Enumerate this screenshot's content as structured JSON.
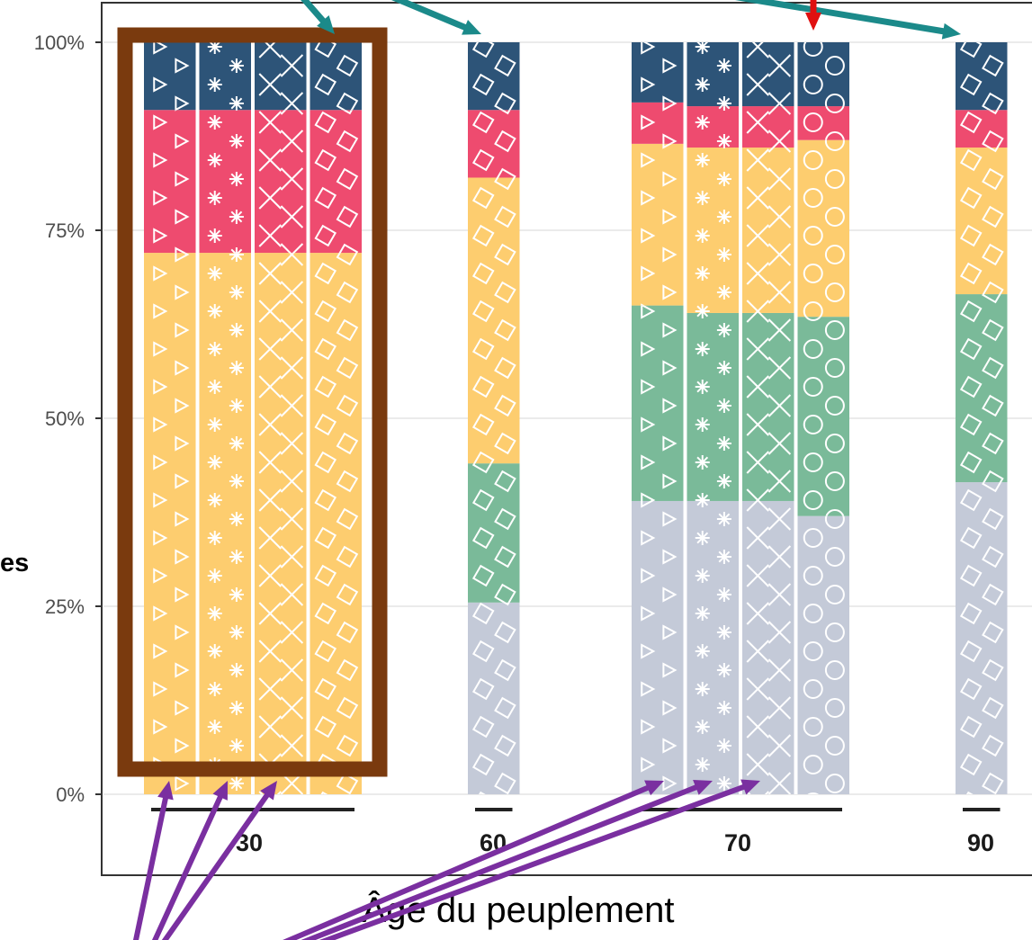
{
  "chart_data": {
    "type": "bar",
    "stacked": true,
    "normalized": true,
    "title": "",
    "xlabel": "Âge du peuplement",
    "ylabel": "",
    "y_ticks": [
      "0%",
      "25%",
      "50%",
      "75%",
      "100%"
    ],
    "ylim": [
      0,
      1
    ],
    "grid": "horizontal",
    "categories": [
      "30",
      "60",
      "70",
      "90"
    ],
    "bars_per_category": [
      4,
      1,
      4,
      1
    ],
    "colors": [
      "#c4cad8",
      "#7aba99",
      "#fdcd6f",
      "#ee4b6f",
      "#2d5478"
    ],
    "bar_patterns": [
      [
        "triangle",
        "asterisk",
        "cross",
        "square"
      ],
      [
        "square"
      ],
      [
        "triangle",
        "asterisk",
        "cross",
        "circle"
      ],
      [
        "square"
      ]
    ],
    "stacks": [
      [
        [
          0.0,
          0.0,
          0.72,
          0.19,
          0.09
        ],
        [
          0.0,
          0.0,
          0.72,
          0.19,
          0.09
        ],
        [
          0.0,
          0.0,
          0.72,
          0.19,
          0.09
        ],
        [
          0.0,
          0.0,
          0.72,
          0.19,
          0.09
        ]
      ],
      [
        [
          0.255,
          0.185,
          0.38,
          0.09,
          0.09
        ]
      ],
      [
        [
          0.39,
          0.26,
          0.215,
          0.055,
          0.08
        ],
        [
          0.39,
          0.25,
          0.22,
          0.055,
          0.085
        ],
        [
          0.39,
          0.25,
          0.22,
          0.055,
          0.085
        ],
        [
          0.37,
          0.265,
          0.235,
          0.045,
          0.085
        ]
      ],
      [
        [
          0.415,
          0.25,
          0.195,
          0.05,
          0.09
        ]
      ]
    ],
    "side_label_fragment": "es",
    "highlight": {
      "color": "#7a3a0e",
      "category": "30"
    },
    "annotation_arrows": [
      {
        "color": "#1b8a8a",
        "count": 3
      },
      {
        "color": "#e01010",
        "count": 1
      },
      {
        "color": "#7a2fa0",
        "count": 5
      }
    ]
  }
}
